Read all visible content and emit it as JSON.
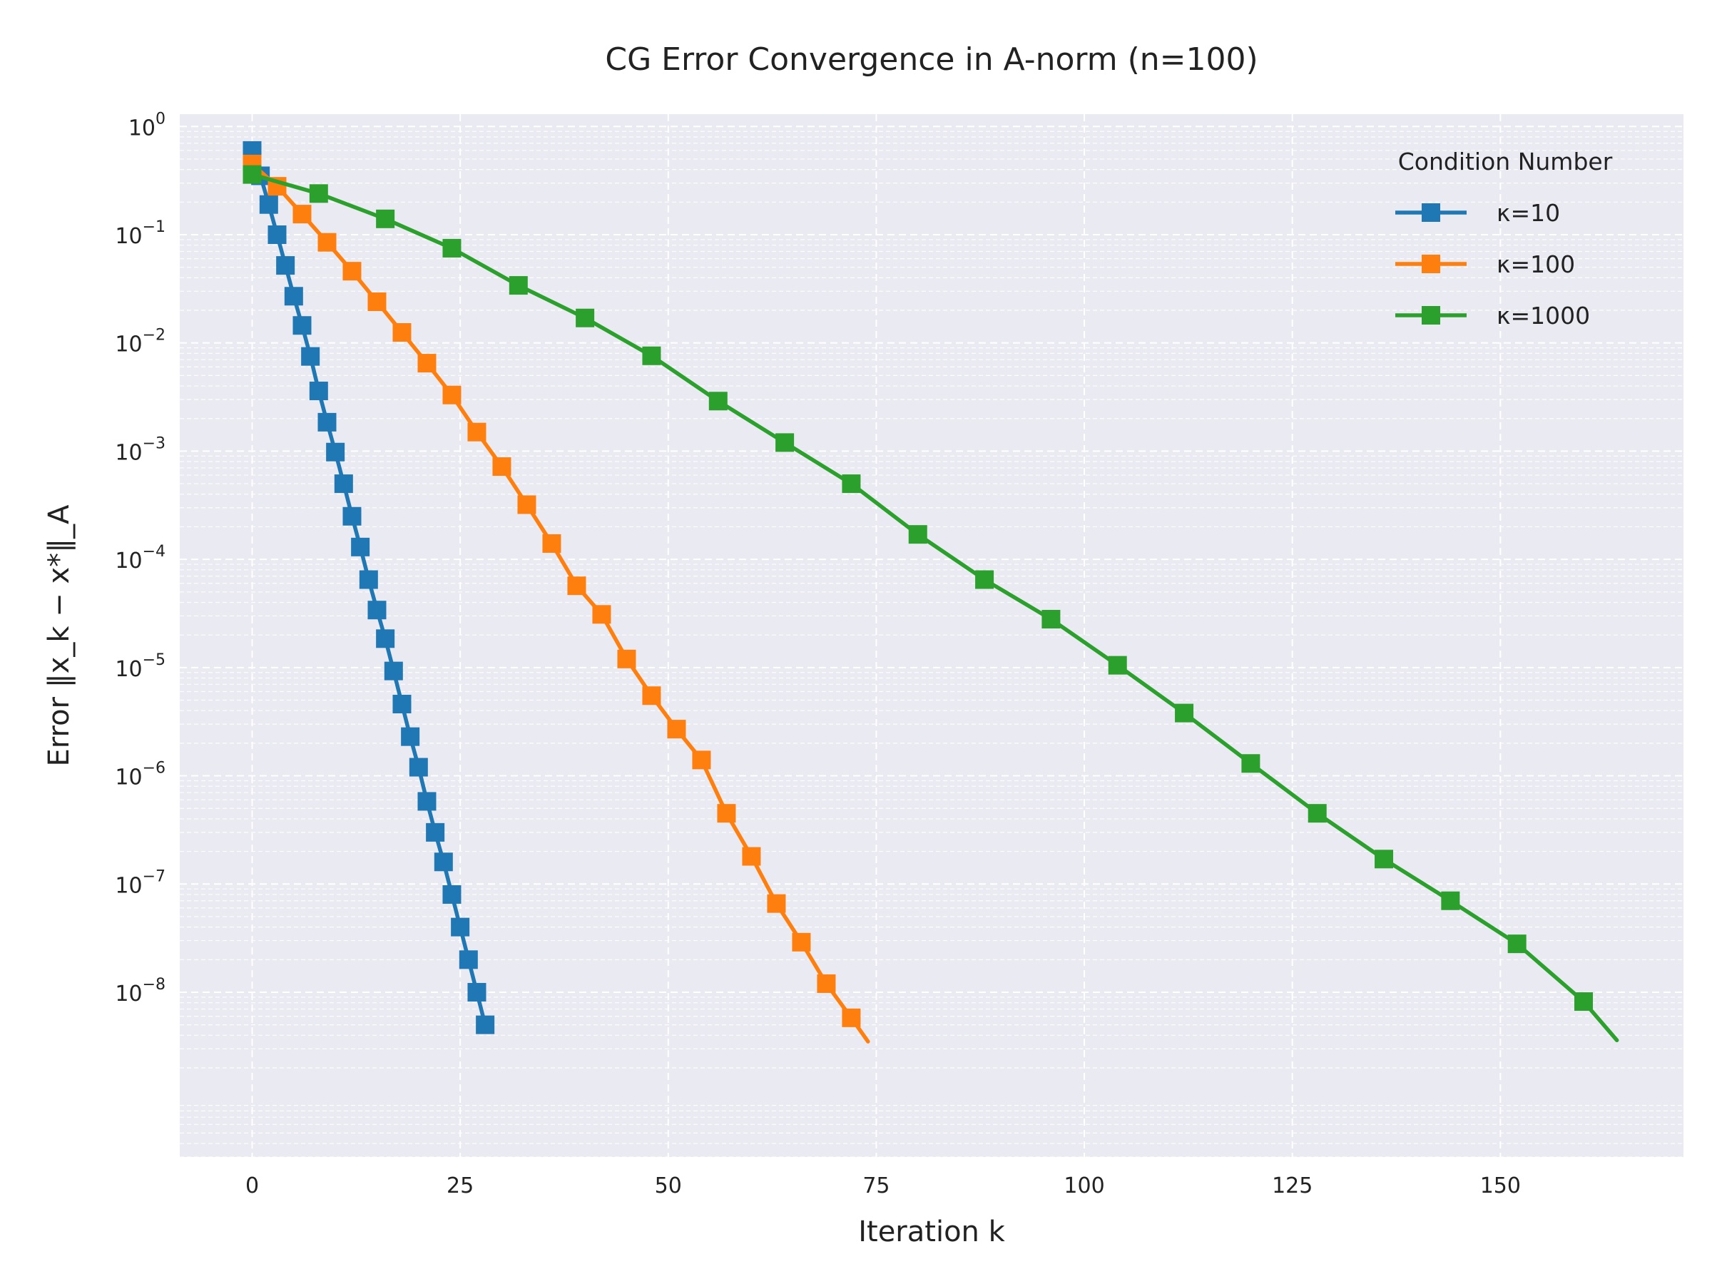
{
  "chart_data": {
    "type": "line",
    "title": "CG Error Convergence in A-norm (n=100)",
    "xlabel": "Iteration k",
    "ylabel": "Error ‖x_k − x*‖_A",
    "xlim": [
      -8.7,
      172
    ],
    "ylim": [
      3e-10,
      1.3
    ],
    "yscale": "log",
    "grid": true,
    "x_ticks": [
      0,
      25,
      50,
      75,
      100,
      125,
      150
    ],
    "y_ticks": [
      {
        "value": 1,
        "mantissa": "10",
        "exponent": "0"
      },
      {
        "value": 0.1,
        "mantissa": "10",
        "exponent": "−1"
      },
      {
        "value": 0.01,
        "mantissa": "10",
        "exponent": "−2"
      },
      {
        "value": 0.001,
        "mantissa": "10",
        "exponent": "−3"
      },
      {
        "value": 0.0001,
        "mantissa": "10",
        "exponent": "−4"
      },
      {
        "value": 1e-05,
        "mantissa": "10",
        "exponent": "−5"
      },
      {
        "value": 1e-06,
        "mantissa": "10",
        "exponent": "−6"
      },
      {
        "value": 1e-07,
        "mantissa": "10",
        "exponent": "−7"
      },
      {
        "value": 1e-08,
        "mantissa": "10",
        "exponent": "−8"
      }
    ],
    "legend": {
      "title": "Condition Number",
      "position": "top-right"
    },
    "series": [
      {
        "name": "κ=10",
        "color": "#1f77b4",
        "marker": "square",
        "x": [
          0,
          1,
          2,
          3,
          4,
          5,
          6,
          7,
          8,
          9,
          10,
          11,
          12,
          13,
          14,
          15,
          16,
          17,
          18,
          19,
          20,
          21,
          22,
          23,
          24,
          25,
          26,
          27,
          28
        ],
        "y": [
          0.6,
          0.35,
          0.19,
          0.1,
          0.052,
          0.027,
          0.0145,
          0.0075,
          0.0036,
          0.00185,
          0.00098,
          0.0005,
          0.00025,
          0.00013,
          6.5e-05,
          3.4e-05,
          1.85e-05,
          9.3e-06,
          4.6e-06,
          2.3e-06,
          1.2e-06,
          5.8e-07,
          3e-07,
          1.6e-07,
          8e-08,
          4e-08,
          2e-08,
          1e-08,
          5e-09
        ]
      },
      {
        "name": "κ=100",
        "color": "#ff7f0e",
        "marker": "square",
        "marker_every": 3,
        "x": [
          0,
          3,
          6,
          9,
          12,
          15,
          18,
          21,
          24,
          27,
          30,
          33,
          36,
          39,
          42,
          45,
          48,
          51,
          54,
          57,
          60,
          63,
          66,
          69,
          72,
          74
        ],
        "y": [
          0.45,
          0.28,
          0.155,
          0.085,
          0.046,
          0.024,
          0.0125,
          0.0065,
          0.0033,
          0.0015,
          0.00072,
          0.00032,
          0.00014,
          5.7e-05,
          3.1e-05,
          1.2e-05,
          5.5e-06,
          2.7e-06,
          1.4e-06,
          4.5e-07,
          1.8e-07,
          6.6e-08,
          2.9e-08,
          1.2e-08,
          5.8e-09,
          3.5e-09
        ]
      },
      {
        "name": "κ=1000",
        "color": "#2ca02c",
        "marker": "square",
        "marker_every": 8,
        "x": [
          0,
          8,
          16,
          24,
          32,
          40,
          48,
          56,
          64,
          72,
          80,
          88,
          96,
          104,
          112,
          120,
          128,
          136,
          144,
          152,
          160,
          164
        ],
        "y": [
          0.36,
          0.24,
          0.14,
          0.075,
          0.034,
          0.017,
          0.0076,
          0.0029,
          0.0012,
          0.0005,
          0.00017,
          6.5e-05,
          2.8e-05,
          1.05e-05,
          3.8e-06,
          1.3e-06,
          4.5e-07,
          1.7e-07,
          7e-08,
          2.8e-08,
          8.2e-09,
          3.6e-09
        ]
      }
    ]
  }
}
